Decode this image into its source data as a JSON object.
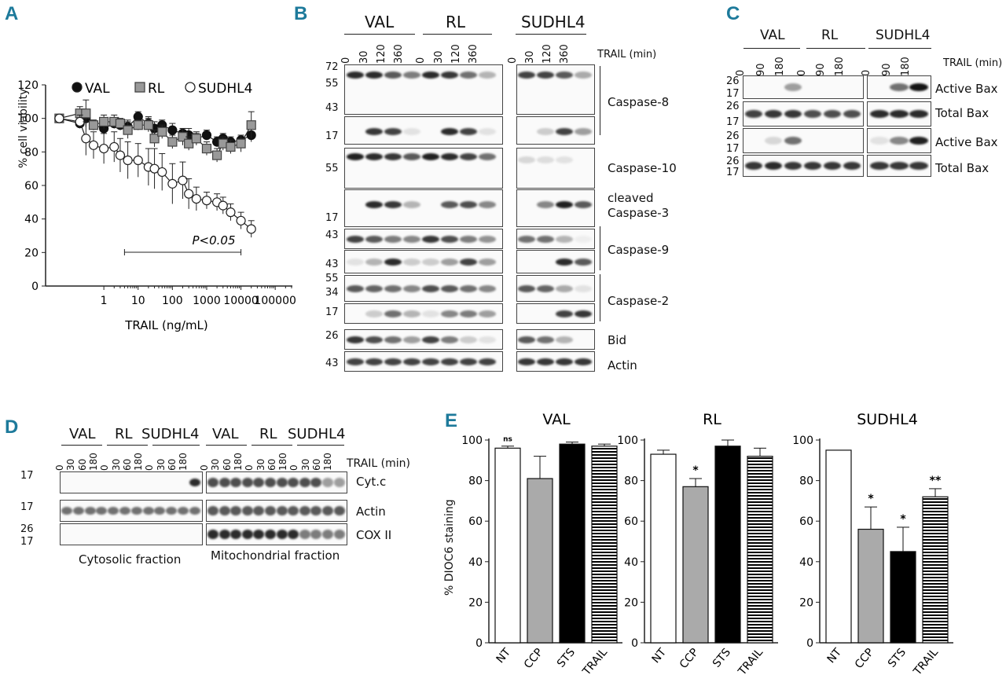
{
  "panels": {
    "A": "A",
    "B": "B",
    "C": "C",
    "D": "D",
    "E": "E"
  },
  "panelA": {
    "legend": [
      "VAL",
      "RL",
      "SUDHL4"
    ],
    "ylabel": "% cell viability",
    "xlabel": "TRAIL (ng/mL)",
    "yticks": [
      "0",
      "20",
      "40",
      "60",
      "80",
      "100",
      "120"
    ],
    "xticks": [
      "1",
      "10",
      "100",
      "1000",
      "10000",
      "100000"
    ],
    "pvalue": "P<0.05"
  },
  "panelB": {
    "cells": [
      "VAL",
      "RL",
      "SUDHL4"
    ],
    "times": [
      "0",
      "30",
      "120",
      "360"
    ],
    "trail": "TRAIL (min)",
    "mw": [
      "72",
      "55",
      "43",
      "17",
      "55",
      "17",
      "43",
      "43",
      "55",
      "34",
      "17",
      "26",
      "43"
    ],
    "labels": [
      "Caspase-8",
      "Caspase-10",
      "cleaved",
      "Caspase-3",
      "Caspase-9",
      "Caspase-2",
      "Bid",
      "Actin"
    ]
  },
  "panelC": {
    "cells": [
      "VAL",
      "RL",
      "SUDHL4"
    ],
    "times": [
      "0",
      "90",
      "180"
    ],
    "trail": "TRAIL (min)",
    "mw": [
      "26",
      "17",
      "26",
      "17",
      "26",
      "17",
      "26",
      "17"
    ],
    "labels": [
      "Active Bax",
      "Total Bax",
      "Active Bax",
      "Total Bax"
    ]
  },
  "panelD": {
    "cells": [
      "VAL",
      "RL",
      "SUDHL4",
      "VAL",
      "RL",
      "SUDHL4"
    ],
    "times": [
      "0",
      "30",
      "60",
      "180"
    ],
    "trail": "TRAIL (min)",
    "mw": [
      "17",
      "17",
      "26",
      "17"
    ],
    "labels": [
      "Cyt.c",
      "Actin",
      "COX II"
    ],
    "fractions": [
      "Cytosolic fraction",
      "Mitochondrial fraction"
    ]
  },
  "panelE": {
    "ylabel": "% DIOC6 staining",
    "yticks": [
      "0",
      "20",
      "40",
      "60",
      "80",
      "100"
    ],
    "categories": [
      "NT",
      "CCP",
      "STS",
      "TRAIL"
    ]
  },
  "chart_data": [
    {
      "type": "line",
      "xlabel": "TRAIL (ng/mL)",
      "ylabel": "% cell viability",
      "xscale": "log",
      "ylim": [
        0,
        120
      ],
      "series": [
        {
          "name": "VAL",
          "x": [
            0.05,
            0.2,
            0.3,
            0.5,
            1,
            2,
            3,
            5,
            10,
            20,
            30,
            50,
            100,
            200,
            300,
            500,
            1000,
            2000,
            3000,
            5000,
            10000,
            20000
          ],
          "values": [
            100,
            97,
            100,
            96,
            94,
            97,
            96,
            95,
            101,
            97,
            94,
            96,
            93,
            91,
            90,
            88,
            90,
            86,
            88,
            86,
            87,
            90
          ]
        },
        {
          "name": "RL",
          "x": [
            0.05,
            0.2,
            0.3,
            0.5,
            1,
            2,
            3,
            5,
            10,
            20,
            30,
            50,
            100,
            200,
            300,
            500,
            1000,
            2000,
            3000,
            5000,
            10000,
            20000
          ],
          "values": [
            100,
            103,
            103,
            96,
            98,
            98,
            97,
            93,
            96,
            96,
            88,
            92,
            86,
            89,
            85,
            88,
            82,
            78,
            85,
            83,
            85,
            96
          ]
        },
        {
          "name": "SUDHL4",
          "x": [
            0.05,
            0.2,
            0.3,
            0.5,
            1,
            2,
            3,
            5,
            10,
            20,
            30,
            50,
            100,
            200,
            300,
            500,
            1000,
            2000,
            3000,
            5000,
            10000,
            20000
          ],
          "values": [
            100,
            98,
            88,
            84,
            82,
            83,
            78,
            75,
            75,
            71,
            70,
            68,
            61,
            63,
            55,
            52,
            51,
            50,
            48,
            44,
            39,
            34
          ]
        }
      ],
      "annotations": [
        "P<0.05"
      ]
    },
    {
      "type": "bar",
      "title": "VAL",
      "ylabel": "% DIOC6 staining",
      "ylim": [
        0,
        100
      ],
      "categories": [
        "NT",
        "CCP",
        "STS",
        "TRAIL"
      ],
      "values": [
        96,
        81,
        98,
        97
      ],
      "annotations": [
        "ns",
        "",
        "",
        ""
      ]
    },
    {
      "type": "bar",
      "title": "RL",
      "ylabel": "",
      "ylim": [
        0,
        100
      ],
      "categories": [
        "NT",
        "CCP",
        "STS",
        "TRAIL"
      ],
      "values": [
        93,
        77,
        97,
        92
      ],
      "annotations": [
        "",
        "*",
        "",
        ""
      ]
    },
    {
      "type": "bar",
      "title": "SUDHL4",
      "ylabel": "",
      "ylim": [
        0,
        100
      ],
      "categories": [
        "NT",
        "CCP",
        "STS",
        "TRAIL"
      ],
      "values": [
        95,
        56,
        45,
        72
      ],
      "annotations": [
        "",
        "*",
        "*",
        "**"
      ]
    }
  ]
}
